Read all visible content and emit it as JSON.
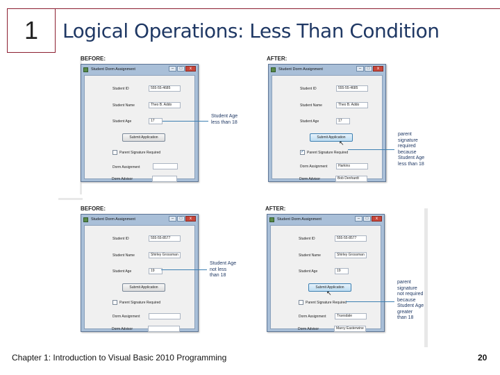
{
  "slide": {
    "chapter_number": "1",
    "title": "Logical Operations: Less Than Condition",
    "footer": "Chapter 1: Introduction to Visual Basic 2010 Programming",
    "page_number": "20"
  },
  "labels": {
    "before": "BEFORE:",
    "after": "AFTER:"
  },
  "form": {
    "window_title": "Student Dorm Assignment",
    "min_glyph": "–",
    "max_glyph": "□",
    "close_glyph": "x",
    "student_id_label": "Student ID",
    "student_name_label": "Student Name",
    "student_age_label": "Student Age",
    "submit_label": "Submit Application",
    "parent_signature_label": "Parent Signature Required",
    "dorm_assignment_label": "Dorm Assignment",
    "dorm_advisor_label": "Dorm Advisor"
  },
  "panels": [
    {
      "section": "BEFORE:",
      "student_id": "555-55-4685",
      "student_name": "Theo B. Addo",
      "student_age": "17",
      "parent_signature_checked": false,
      "dorm_assignment": "",
      "dorm_advisor": "",
      "note_lines": [
        "Student Age",
        "less than 18"
      ]
    },
    {
      "section": "AFTER:",
      "student_id": "555-55-4685",
      "student_name": "Theo B. Addo",
      "student_age": "17",
      "parent_signature_checked": true,
      "dorm_assignment": "Harkins",
      "dorm_advisor": "Bob Denhardt",
      "note_lines": [
        "parent",
        "signature",
        "required",
        "because",
        "Student Age",
        "less than 18"
      ]
    },
    {
      "section": "BEFORE:",
      "student_id": "555-55-8577",
      "student_name": "Shirley Grossman",
      "student_age": "19",
      "parent_signature_checked": false,
      "dorm_assignment": "",
      "dorm_advisor": "",
      "note_lines": [
        "Student Age",
        "not less",
        "than 18"
      ]
    },
    {
      "section": "AFTER:",
      "student_id": "555-55-8577",
      "student_name": "Shirley Grossman",
      "student_age": "19",
      "parent_signature_checked": false,
      "dorm_assignment": "Truesdale",
      "dorm_advisor": "Marcy Easterwine",
      "note_lines": [
        "parent",
        "signature",
        "not required",
        "because",
        "Student Age",
        "greater",
        "than 18"
      ]
    }
  ],
  "colors": {
    "title": "#1f3864",
    "accent_border": "#8b1d2f",
    "callout": "#3c7fb1"
  }
}
